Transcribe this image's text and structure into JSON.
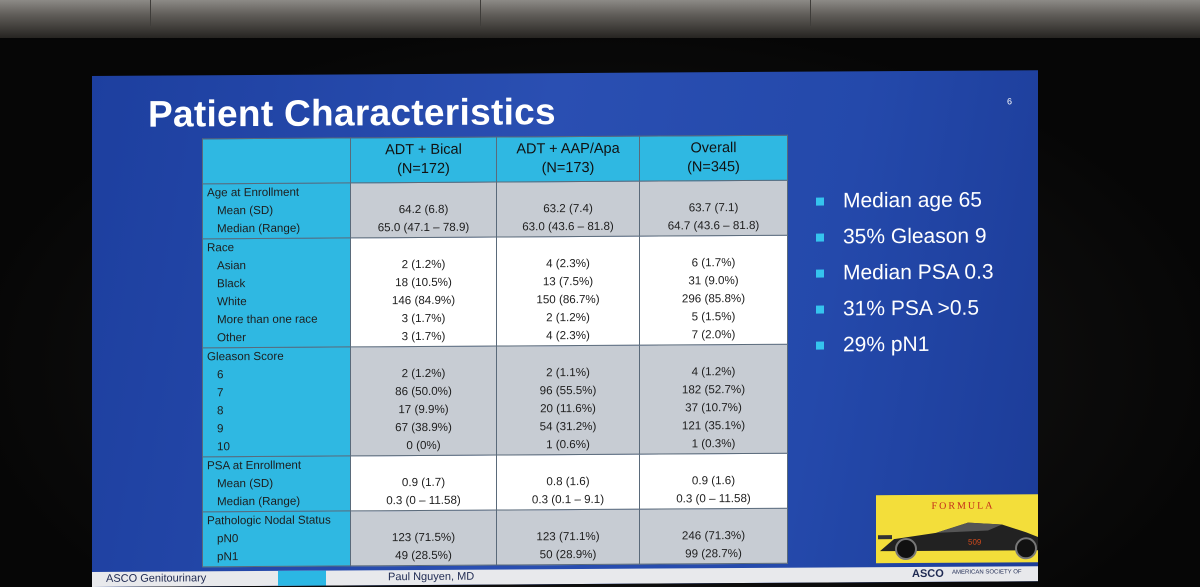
{
  "slide": {
    "title": "Patient Characteristics",
    "slide_number": "6",
    "table": {
      "columns": [
        "ADT + Bical",
        "ADT + AAP/Apa",
        "Overall"
      ],
      "column_ns": [
        "(N=172)",
        "(N=173)",
        "(N=345)"
      ],
      "groups": [
        {
          "header": "Age at Enrollment",
          "rows": [
            {
              "label": "Mean (SD)",
              "values": [
                "64.2 (6.8)",
                "63.2 (7.4)",
                "63.7 (7.1)"
              ]
            },
            {
              "label": "Median (Range)",
              "values": [
                "65.0 (47.1 – 78.9)",
                "63.0 (43.6 – 81.8)",
                "64.7 (43.6 – 81.8)"
              ]
            }
          ]
        },
        {
          "header": "Race",
          "rows": [
            {
              "label": "Asian",
              "values": [
                "2 (1.2%)",
                "4 (2.3%)",
                "6 (1.7%)"
              ]
            },
            {
              "label": "Black",
              "values": [
                "18 (10.5%)",
                "13 (7.5%)",
                "31 (9.0%)"
              ]
            },
            {
              "label": "White",
              "values": [
                "146 (84.9%)",
                "150 (86.7%)",
                "296 (85.8%)"
              ]
            },
            {
              "label": "More than one race",
              "values": [
                "3 (1.7%)",
                "2 (1.2%)",
                "5 (1.5%)"
              ]
            },
            {
              "label": "Other",
              "values": [
                "3 (1.7%)",
                "4 (2.3%)",
                "7 (2.0%)"
              ]
            }
          ]
        },
        {
          "header": "Gleason Score",
          "rows": [
            {
              "label": "6",
              "values": [
                "2 (1.2%)",
                "2 (1.1%)",
                "4 (1.2%)"
              ]
            },
            {
              "label": "7",
              "values": [
                "86 (50.0%)",
                "96 (55.5%)",
                "182 (52.7%)"
              ]
            },
            {
              "label": "8",
              "values": [
                "17 (9.9%)",
                "20 (11.6%)",
                "37 (10.7%)"
              ]
            },
            {
              "label": "9",
              "values": [
                "67 (38.9%)",
                "54 (31.2%)",
                "121 (35.1%)"
              ]
            },
            {
              "label": "10",
              "values": [
                "0 (0%)",
                "1 (0.6%)",
                "1 (0.3%)"
              ]
            }
          ]
        },
        {
          "header": "PSA at Enrollment",
          "rows": [
            {
              "label": "Mean (SD)",
              "values": [
                "0.9 (1.7)",
                "0.8 (1.6)",
                "0.9 (1.6)"
              ]
            },
            {
              "label": "Median (Range)",
              "values": [
                "0.3 (0 – 11.58)",
                "0.3 (0.1 – 9.1)",
                "0.3 (0 – 11.58)"
              ]
            }
          ]
        },
        {
          "header": "Pathologic Nodal Status",
          "rows": [
            {
              "label": "pN0",
              "values": [
                "123 (71.5%)",
                "123 (71.1%)",
                "246 (71.3%)"
              ]
            },
            {
              "label": "pN1",
              "values": [
                "49 (28.5%)",
                "50 (28.9%)",
                "99 (28.7%)"
              ]
            }
          ]
        }
      ]
    },
    "bullets": [
      "Median age 65",
      "35% Gleason 9",
      "Median PSA 0.3",
      "31% PSA >0.5",
      "29% pN1"
    ],
    "logo_text": "FORMULA",
    "car_number": "509",
    "footer": {
      "left": "ASCO Genitourinary",
      "center": "Paul Nguyen, MD",
      "right": "ASCO",
      "right_small": "AMERICAN SOCIETY OF"
    },
    "colors": {
      "slide_bg": "#2a4fb2",
      "header_cyan": "#2fb8e2",
      "bullet_accent": "#35c4ee",
      "logo_yellow": "#f3de3a"
    }
  }
}
